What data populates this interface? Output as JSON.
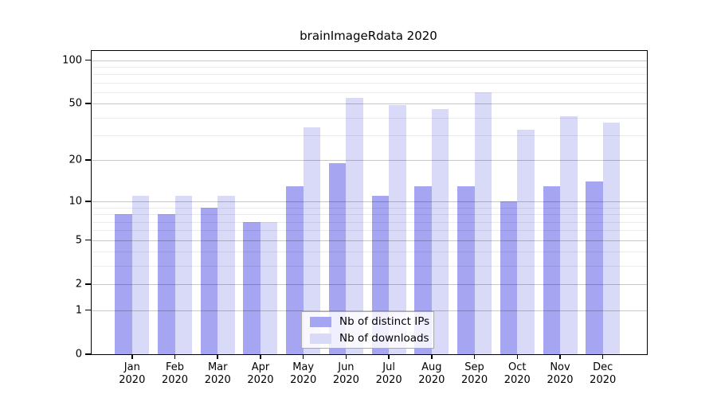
{
  "title": "brainImageRdata 2020",
  "chart_data": {
    "type": "bar",
    "title": "brainImageRdata 2020",
    "categories": [
      "Jan 2020",
      "Feb 2020",
      "Mar 2020",
      "Apr 2020",
      "May 2020",
      "Jun 2020",
      "Jul 2020",
      "Aug 2020",
      "Sep 2020",
      "Oct 2020",
      "Nov 2020",
      "Dec 2020"
    ],
    "months": [
      "Jan",
      "Feb",
      "Mar",
      "Apr",
      "May",
      "Jun",
      "Jul",
      "Aug",
      "Sep",
      "Oct",
      "Nov",
      "Dec"
    ],
    "year_label": "2020",
    "series": [
      {
        "name": "Nb of distinct IPs",
        "color": "#a5a5f2",
        "values": [
          8,
          8,
          9,
          7,
          13,
          19,
          11,
          13,
          13,
          10,
          13,
          14
        ]
      },
      {
        "name": "Nb of downloads",
        "color": "#d9d9f8",
        "values": [
          11,
          11,
          11,
          7,
          34,
          55,
          49,
          46,
          60,
          33,
          41,
          37
        ]
      }
    ],
    "y_scale": "log10(1+x)",
    "y_ticks": [
      0,
      1,
      2,
      5,
      10,
      20,
      50,
      100
    ],
    "y_minor_ticks": [
      3,
      4,
      6,
      7,
      8,
      9,
      30,
      40,
      60,
      70,
      80,
      90
    ],
    "ylim": [
      0,
      116
    ],
    "xlabel": "",
    "ylabel": "",
    "grid": true,
    "legend_position": "bottom-center-inside",
    "colors": {
      "distinct_ips": "#a5a5f2",
      "downloads": "#d9d9f8",
      "grid_major": "#c7c7c7",
      "grid_minor": "#ebebeb",
      "axis": "#000000"
    }
  },
  "legend": {
    "items": [
      {
        "label": "Nb of distinct IPs"
      },
      {
        "label": "Nb of downloads"
      }
    ]
  }
}
